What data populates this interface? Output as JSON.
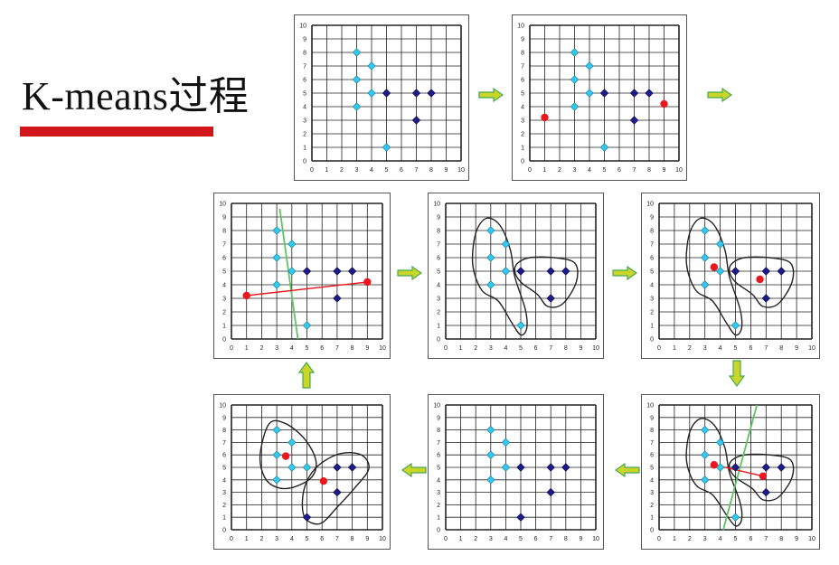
{
  "title": "K-means过程",
  "colors": {
    "title_bar": "#d0161b",
    "cluster_a_points": "#33c9f0",
    "cluster_b_points": "#1c1c8a",
    "centroid": "#e8181e",
    "centroid_link": "#e8181e",
    "boundary": "#5cc465",
    "arrow_fill": "#c9d629",
    "arrow_stroke": "#49a84f",
    "grid": "#222222"
  },
  "axis": {
    "x_ticks": [
      "0",
      "1",
      "2",
      "3",
      "4",
      "5",
      "6",
      "7",
      "8",
      "9",
      "10"
    ],
    "y_ticks": [
      "0",
      "1",
      "2",
      "3",
      "4",
      "5",
      "6",
      "7",
      "8",
      "9",
      "10"
    ]
  },
  "dataset": {
    "points": [
      {
        "x": 3,
        "y": 8
      },
      {
        "x": 4,
        "y": 7
      },
      {
        "x": 3,
        "y": 6
      },
      {
        "x": 4,
        "y": 5
      },
      {
        "x": 3,
        "y": 4
      },
      {
        "x": 5,
        "y": 5
      },
      {
        "x": 5,
        "y": 1
      },
      {
        "x": 7,
        "y": 5
      },
      {
        "x": 8,
        "y": 5
      },
      {
        "x": 7,
        "y": 3
      }
    ]
  },
  "steps": [
    {
      "step": 1,
      "colors": [
        "a",
        "a",
        "a",
        "a",
        "a",
        "b",
        "a",
        "b",
        "b",
        "b"
      ],
      "centroids": [],
      "boundary": null,
      "link": false,
      "outlines": []
    },
    {
      "step": 2,
      "colors": [
        "a",
        "a",
        "a",
        "a",
        "a",
        "b",
        "a",
        "b",
        "b",
        "b"
      ],
      "centroids": [
        {
          "x": 1,
          "y": 3.2
        },
        {
          "x": 9,
          "y": 4.2
        }
      ],
      "boundary": null,
      "link": false,
      "outlines": []
    },
    {
      "step": 3,
      "colors": [
        "a",
        "a",
        "a",
        "a",
        "a",
        "b",
        "a",
        "b",
        "b",
        "b"
      ],
      "centroids": [
        {
          "x": 1,
          "y": 3.2
        },
        {
          "x": 9,
          "y": 4.2
        }
      ],
      "boundary": [
        {
          "x": 3.2,
          "y": 9.6
        },
        {
          "x": 4.4,
          "y": 0
        }
      ],
      "link": true,
      "outlines": []
    },
    {
      "step": 4,
      "colors": [
        "a",
        "a",
        "a",
        "a",
        "a",
        "b",
        "a",
        "b",
        "b",
        "b"
      ],
      "centroids": [],
      "boundary": null,
      "link": false,
      "outlines": [
        "left",
        "right"
      ]
    },
    {
      "step": 5,
      "colors": [
        "a",
        "a",
        "a",
        "a",
        "a",
        "b",
        "a",
        "b",
        "b",
        "b"
      ],
      "centroids": [
        {
          "x": 3.6,
          "y": 5.3
        },
        {
          "x": 6.6,
          "y": 4.4
        }
      ],
      "boundary": null,
      "link": false,
      "outlines": [
        "left",
        "right"
      ]
    },
    {
      "step": 6,
      "colors": [
        "a",
        "a",
        "a",
        "a",
        "a",
        "b",
        "a",
        "b",
        "b",
        "b"
      ],
      "centroids": [
        {
          "x": 3.6,
          "y": 5.2
        },
        {
          "x": 6.8,
          "y": 4.3
        }
      ],
      "boundary": [
        {
          "x": 6.4,
          "y": 10
        },
        {
          "x": 4.2,
          "y": 0
        }
      ],
      "link": true,
      "outlines": [
        "left",
        "right"
      ]
    },
    {
      "step": 7,
      "colors": [
        "a",
        "a",
        "a",
        "a",
        "a",
        "b",
        "b",
        "b",
        "b",
        "b"
      ],
      "centroids": [],
      "boundary": null,
      "link": false,
      "outlines": []
    },
    {
      "step": 8,
      "colors": [
        "a",
        "a",
        "a",
        "a",
        "a",
        "a",
        "b",
        "b",
        "b",
        "b"
      ],
      "centroids": [
        {
          "x": 3.6,
          "y": 5.9
        },
        {
          "x": 6.1,
          "y": 3.9
        }
      ],
      "boundary": null,
      "link": false,
      "outlines": [
        "left2",
        "right2"
      ]
    }
  ],
  "arrows": [
    {
      "from": 1,
      "to": 2,
      "dir": "right"
    },
    {
      "from": 2,
      "to": "next-row",
      "dir": "right"
    },
    {
      "from": 3,
      "to": 4,
      "dir": "right"
    },
    {
      "from": 4,
      "to": 5,
      "dir": "right"
    },
    {
      "from": 5,
      "to": 6,
      "dir": "down"
    },
    {
      "from": 6,
      "to": 7,
      "dir": "left"
    },
    {
      "from": 7,
      "to": 8,
      "dir": "left"
    },
    {
      "from": 8,
      "to": 3,
      "dir": "up"
    }
  ]
}
